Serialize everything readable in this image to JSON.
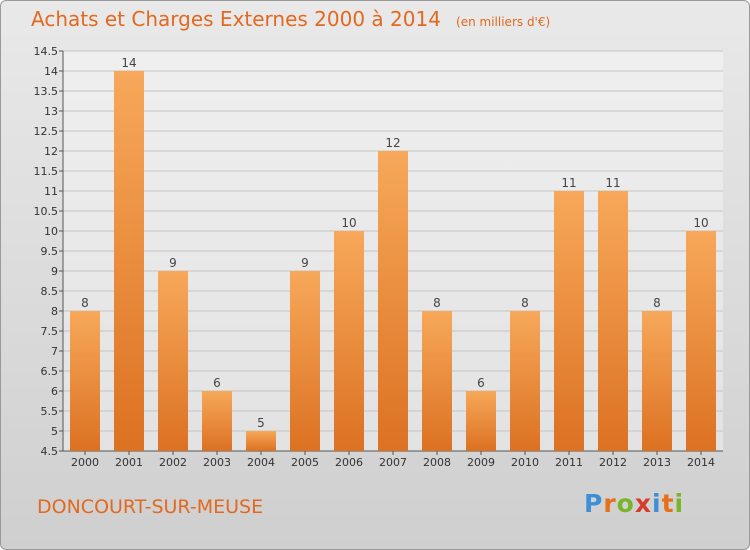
{
  "page": {
    "title": "Achats et Charges Externes 2000 à 2014",
    "unit": "(en milliers d'€)",
    "commune": "DONCOURT-SUR-MEUSE",
    "logo": {
      "letters": [
        "P",
        "r",
        "o",
        "x",
        "i",
        "t",
        "i"
      ],
      "colors": [
        "#3d8fd6",
        "#e7711b",
        "#79b52a",
        "#d43d2a",
        "#3d8fd6",
        "#e7711b",
        "#79b52a"
      ]
    }
  },
  "colors": {
    "bar_light": "#f7a85a",
    "bar_dark": "#dc7122",
    "title": "#e2691f"
  },
  "chart_data": {
    "type": "bar",
    "title": "Achats et Charges Externes 2000 à 2014",
    "categories": [
      "2000",
      "2001",
      "2002",
      "2003",
      "2004",
      "2005",
      "2006",
      "2007",
      "2008",
      "2009",
      "2010",
      "2011",
      "2012",
      "2013",
      "2014"
    ],
    "values": [
      8,
      14,
      9,
      6,
      5,
      9,
      10,
      12,
      8,
      6,
      8,
      11,
      11,
      8,
      10
    ],
    "ylim": [
      4.5,
      14.5
    ],
    "yticks": [
      "4.5",
      "5",
      "5.5",
      "6",
      "6.5",
      "7",
      "7.5",
      "8",
      "8.5",
      "9",
      "9.5",
      "10",
      "10.5",
      "11",
      "11.5",
      "12",
      "12.5",
      "13",
      "13.5",
      "14",
      "14.5"
    ],
    "xlabel": "",
    "ylabel": "",
    "grid": true
  }
}
